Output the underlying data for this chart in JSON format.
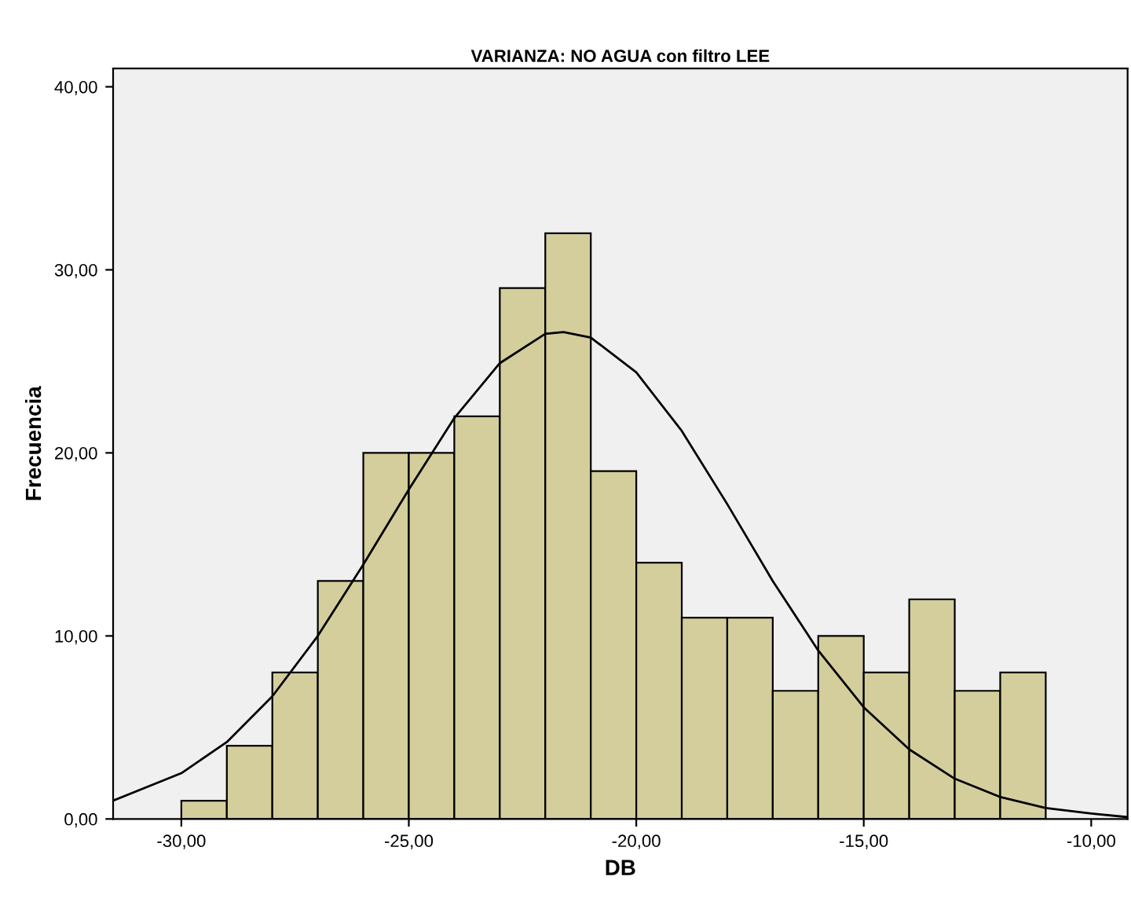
{
  "chart_data": {
    "type": "histogram",
    "title": "VARIANZA: NO AGUA con filtro LEE",
    "xlabel": "DB",
    "ylabel": "Frecuencia",
    "bins": [
      -30,
      -29,
      -28,
      -27,
      -26,
      -25,
      -24,
      -23,
      -22,
      -21,
      -20,
      -19,
      -18,
      -17,
      -16,
      -15,
      -14,
      -13,
      -12,
      -11
    ],
    "series": [
      {
        "color": "#d3ce9b",
        "values": [
          1,
          4,
          8,
          13,
          20,
          20,
          22,
          29,
          32,
          19,
          14,
          11,
          11,
          7,
          10,
          8,
          12,
          7,
          8
        ]
      },
      {
        "type": "line",
        "color": "#000000",
        "x": [
          -31.5,
          -30,
          -29,
          -28,
          -27,
          -26,
          -25,
          -24,
          -23,
          -22,
          -21.6,
          -21,
          -20,
          -19,
          -18,
          -17,
          -16,
          -15,
          -14,
          -13,
          -12,
          -11,
          -10,
          -9.2
        ],
        "values": [
          1.0,
          2.5,
          4.2,
          6.7,
          10.0,
          13.9,
          18.0,
          21.9,
          24.9,
          26.5,
          26.6,
          26.3,
          24.4,
          21.2,
          17.2,
          13.0,
          9.2,
          6.1,
          3.8,
          2.2,
          1.2,
          0.6,
          0.3,
          0.1
        ]
      }
    ],
    "xlim": [
      -31.5,
      -9.2
    ],
    "ylim": [
      0,
      41
    ],
    "xticks": [
      {
        "value": -30,
        "label": "-30,00"
      },
      {
        "value": -25,
        "label": "-25,00"
      },
      {
        "value": -20,
        "label": "-20,00"
      },
      {
        "value": -15,
        "label": "-15,00"
      },
      {
        "value": -10,
        "label": "-10,00"
      }
    ],
    "yticks": [
      {
        "value": 0,
        "label": "0,00"
      },
      {
        "value": 10,
        "label": "10,00"
      },
      {
        "value": 20,
        "label": "20,00"
      },
      {
        "value": 30,
        "label": "30,00"
      },
      {
        "value": 40,
        "label": "40,00"
      }
    ],
    "grid": false
  }
}
